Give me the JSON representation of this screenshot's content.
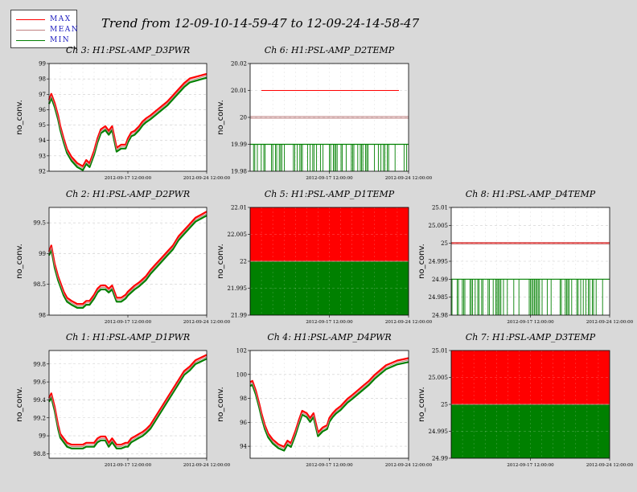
{
  "title": "Trend from 12-09-10-14-59-47 to 12-09-24-14-58-47",
  "legend": [
    {
      "label": "MAX",
      "color": "#ff0000"
    },
    {
      "label": "MEAN",
      "color": "#c08080"
    },
    {
      "label": "MIN",
      "color": "#008000"
    }
  ],
  "chart_data": [
    {
      "id": "ch3",
      "type": "line",
      "title": "Ch 3: H1:PSL-AMP_D3PWR",
      "ylabel": "no_conv.",
      "ylim": [
        92,
        99
      ],
      "yticks": [
        "92",
        "93",
        "94",
        "95",
        "96",
        "97",
        "98",
        "99"
      ],
      "xticks": [
        "2012-09-17 12:00:00",
        "2012-09-24 12:00:00"
      ],
      "style": "trend",
      "grid": true,
      "series": [
        {
          "name": "MEAN",
          "x": [
            0,
            0.2,
            0.5,
            0.8,
            1,
            1.3,
            1.6,
            2,
            2.5,
            3,
            3.3,
            3.6,
            4,
            4.3,
            4.6,
            5,
            5.3,
            5.6,
            6,
            6.4,
            6.8,
            7,
            7.3,
            7.6,
            8,
            8.3,
            8.6,
            9,
            9.5,
            10,
            10.5,
            11,
            11.5,
            12,
            12.5,
            13,
            13.5,
            14
          ],
          "values": [
            96.5,
            96.9,
            96.3,
            95.5,
            94.8,
            94.0,
            93.3,
            92.8,
            92.4,
            92.2,
            92.6,
            92.4,
            93.2,
            94.0,
            94.6,
            94.8,
            94.5,
            94.8,
            93.4,
            93.6,
            93.6,
            94.0,
            94.4,
            94.5,
            94.8,
            95.1,
            95.3,
            95.5,
            95.8,
            96.1,
            96.4,
            96.8,
            97.2,
            97.6,
            97.9,
            98.0,
            98.1,
            98.2
          ]
        }
      ]
    },
    {
      "id": "ch6",
      "type": "line",
      "title": "Ch 6: H1:PSL-AMP_D2TEMP",
      "ylabel": "no_conv.",
      "ylim": [
        19.98,
        20.02
      ],
      "yticks": [
        "19.98",
        "19.99",
        "20",
        "20.01",
        "20.02"
      ],
      "xticks": [
        "2012-09-17 12:00:00",
        "2012-09-24 12:00:00"
      ],
      "style": "flat",
      "grid": true,
      "series": [
        {
          "name": "MAX",
          "values": [
            20.01
          ]
        },
        {
          "name": "MEAN",
          "values": [
            20.0
          ]
        },
        {
          "name": "MIN",
          "values": [
            19.99
          ]
        }
      ]
    },
    {
      "id": "ch2",
      "type": "line",
      "title": "Ch 2: H1:PSL-AMP_D2PWR",
      "ylabel": "no_conv.",
      "ylim": [
        98,
        99.75
      ],
      "yticks": [
        "98",
        "98.5",
        "99",
        "99.5"
      ],
      "xticks": [
        "2012-09-17 12:00:00",
        "2012-09-24 12:00:00"
      ],
      "style": "trend",
      "grid": true,
      "series": [
        {
          "name": "MEAN",
          "x": [
            0,
            0.2,
            0.5,
            0.8,
            1,
            1.3,
            1.6,
            2,
            2.5,
            3,
            3.3,
            3.6,
            4,
            4.3,
            4.6,
            5,
            5.3,
            5.6,
            6,
            6.4,
            6.8,
            7,
            7.3,
            7.6,
            8,
            8.3,
            8.6,
            9,
            9.5,
            10,
            10.5,
            11,
            11.5,
            12,
            12.5,
            13,
            13.5,
            14
          ],
          "values": [
            99.0,
            99.1,
            98.8,
            98.6,
            98.5,
            98.35,
            98.25,
            98.2,
            98.15,
            98.15,
            98.2,
            98.2,
            98.3,
            98.4,
            98.45,
            98.45,
            98.4,
            98.45,
            98.25,
            98.25,
            98.3,
            98.35,
            98.4,
            98.45,
            98.5,
            98.55,
            98.6,
            98.7,
            98.8,
            98.9,
            99.0,
            99.1,
            99.25,
            99.35,
            99.45,
            99.55,
            99.6,
            99.65
          ]
        }
      ]
    },
    {
      "id": "ch5",
      "type": "area",
      "title": "Ch 5: H1:PSL-AMP_D1TEMP",
      "ylabel": "no_conv.",
      "ylim": [
        21.99,
        22.01
      ],
      "yticks": [
        "21.99",
        "21.995",
        "22",
        "22.005",
        "22.01"
      ],
      "xticks": [
        "2012-09-17 12:00:00",
        "2012-09-24 12:00:00"
      ],
      "style": "band",
      "grid": true,
      "series": [
        {
          "name": "MAX",
          "values": [
            22.01
          ]
        },
        {
          "name": "MEAN",
          "values": [
            22.0
          ]
        },
        {
          "name": "MIN",
          "values": [
            21.99
          ]
        }
      ]
    },
    {
      "id": "ch8",
      "type": "line",
      "title": "Ch 8: H1:PSL-AMP_D4TEMP",
      "ylabel": "no_conv.",
      "ylim": [
        24.98,
        25.01
      ],
      "yticks": [
        "24.98",
        "24.985",
        "24.99",
        "24.995",
        "25",
        "25.005",
        "25.01"
      ],
      "xticks": [
        "2012-09-17 12:00:00",
        "2012-09-24 12:00:00"
      ],
      "style": "flat",
      "grid": true,
      "series": [
        {
          "name": "MAX",
          "values": [
            25.0
          ]
        },
        {
          "name": "MEAN",
          "values": [
            25.0
          ]
        },
        {
          "name": "MIN",
          "values": [
            24.99
          ]
        }
      ]
    },
    {
      "id": "ch1",
      "type": "line",
      "title": "Ch 1: H1:PSL-AMP_D1PWR",
      "ylabel": "no_conv.",
      "ylim": [
        98.75,
        99.95
      ],
      "yticks": [
        "98.8",
        "99",
        "99.2",
        "99.4",
        "99.6",
        "99.8"
      ],
      "xticks": [
        "2012-09-17 12:00:00",
        "2012-09-24 12:00:00"
      ],
      "style": "trend",
      "grid": true,
      "series": [
        {
          "name": "MEAN",
          "x": [
            0,
            0.2,
            0.5,
            0.8,
            1,
            1.3,
            1.6,
            2,
            2.5,
            3,
            3.3,
            3.6,
            4,
            4.3,
            4.6,
            5,
            5.3,
            5.6,
            6,
            6.4,
            6.8,
            7,
            7.3,
            7.6,
            8,
            8.3,
            8.6,
            9,
            9.5,
            10,
            10.5,
            11,
            11.5,
            12,
            12.5,
            13,
            13.5,
            14
          ],
          "values": [
            99.4,
            99.45,
            99.3,
            99.1,
            99.0,
            98.95,
            98.9,
            98.88,
            98.88,
            98.88,
            98.9,
            98.9,
            98.9,
            98.95,
            98.97,
            98.97,
            98.9,
            98.95,
            98.88,
            98.88,
            98.9,
            98.9,
            98.95,
            98.97,
            99.0,
            99.02,
            99.05,
            99.1,
            99.2,
            99.3,
            99.4,
            99.5,
            99.6,
            99.7,
            99.75,
            99.82,
            99.85,
            99.88
          ]
        }
      ]
    },
    {
      "id": "ch4",
      "type": "line",
      "title": "Ch 4: H1:PSL-AMP_D4PWR",
      "ylabel": "no_conv.",
      "ylim": [
        93,
        102
      ],
      "yticks": [
        "94",
        "96",
        "98",
        "100",
        "102"
      ],
      "xticks": [
        "2012-09-17 12:00:00",
        "2012-09-24 12:00:00"
      ],
      "style": "trend",
      "grid": true,
      "series": [
        {
          "name": "MEAN",
          "x": [
            0,
            0.2,
            0.5,
            0.8,
            1,
            1.3,
            1.6,
            2,
            2.5,
            3,
            3.3,
            3.6,
            4,
            4.3,
            4.6,
            5,
            5.3,
            5.6,
            6,
            6.4,
            6.8,
            7,
            7.3,
            7.6,
            8,
            8.3,
            8.6,
            9,
            9.5,
            10,
            10.5,
            11,
            11.5,
            12,
            12.5,
            13,
            13.5,
            14
          ],
          "values": [
            99.2,
            99.3,
            98.5,
            97.4,
            96.6,
            95.6,
            94.9,
            94.4,
            94.0,
            93.8,
            94.3,
            94.1,
            95.1,
            96.0,
            96.8,
            96.6,
            96.2,
            96.6,
            95.0,
            95.4,
            95.6,
            96.2,
            96.6,
            96.9,
            97.2,
            97.5,
            97.8,
            98.1,
            98.5,
            98.9,
            99.3,
            99.8,
            100.2,
            100.6,
            100.8,
            101.0,
            101.1,
            101.2
          ]
        }
      ]
    },
    {
      "id": "ch7",
      "type": "area",
      "title": "Ch 7: H1:PSL-AMP_D3TEMP",
      "ylabel": "no_conv.",
      "ylim": [
        24.99,
        25.01
      ],
      "yticks": [
        "24.99",
        "24.995",
        "25",
        "25.005",
        "25.01"
      ],
      "xticks": [
        "2012-09-17 12:00:00",
        "2012-09-24 12:00:00"
      ],
      "style": "band",
      "grid": true,
      "series": [
        {
          "name": "MAX",
          "values": [
            25.01
          ]
        },
        {
          "name": "MEAN",
          "values": [
            25.0
          ]
        },
        {
          "name": "MIN",
          "values": [
            24.99
          ]
        }
      ]
    }
  ]
}
